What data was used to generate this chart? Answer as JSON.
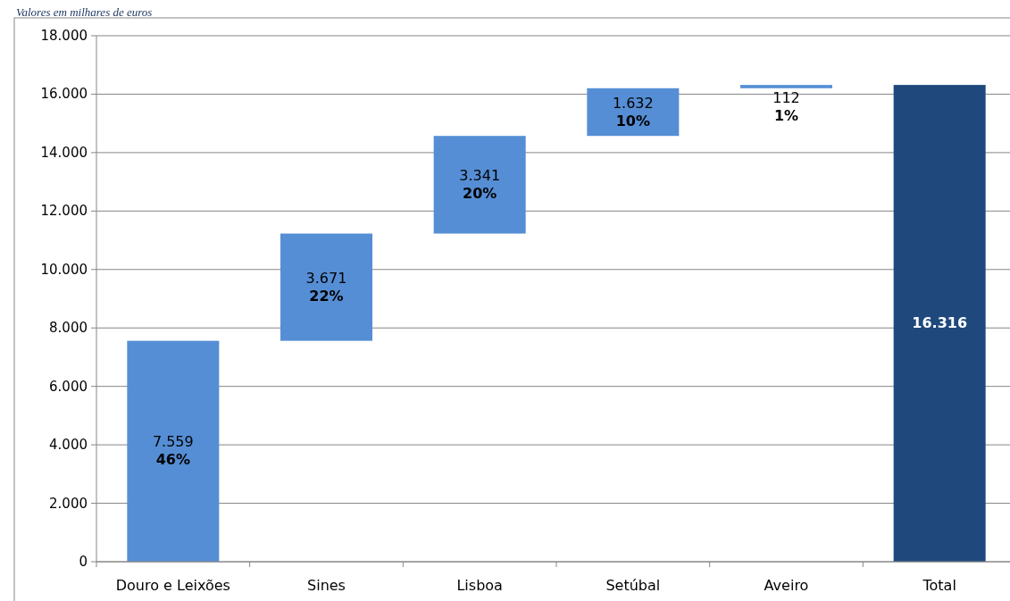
{
  "chart_data": {
    "type": "bar",
    "title": "Valores em milhares de euros",
    "categories": [
      "Douro e Leixões",
      "Sines",
      "Lisboa",
      "Setúbal",
      "Aveiro",
      "Total"
    ],
    "values": [
      7559,
      3671,
      3341,
      1632,
      112,
      16316
    ],
    "base": [
      0,
      7559,
      11230,
      14571,
      16203,
      0
    ],
    "colors": [
      "#558ed5",
      "#558ed5",
      "#558ed5",
      "#558ed5",
      "#558ed5",
      "#1f497d"
    ],
    "value_labels": [
      "7.559\n46%",
      "3.671\n22%",
      "3.341\n20%",
      "1.632\n10%",
      "112\n1%",
      "16.316"
    ],
    "ylim": [
      0,
      18000
    ],
    "yticks": [
      {
        "value": 0,
        "label": "0"
      },
      {
        "value": 2000,
        "label": "2.000"
      },
      {
        "value": 4000,
        "label": "4.000"
      },
      {
        "value": 6000,
        "label": "6.000"
      },
      {
        "value": 8000,
        "label": "8.000"
      },
      {
        "value": 10000,
        "label": "10.000"
      },
      {
        "value": 12000,
        "label": "12.000"
      },
      {
        "value": 14000,
        "label": "14.000"
      },
      {
        "value": 16000,
        "label": "16.000"
      },
      {
        "value": 18000,
        "label": "18.000"
      }
    ],
    "grid": "y"
  }
}
